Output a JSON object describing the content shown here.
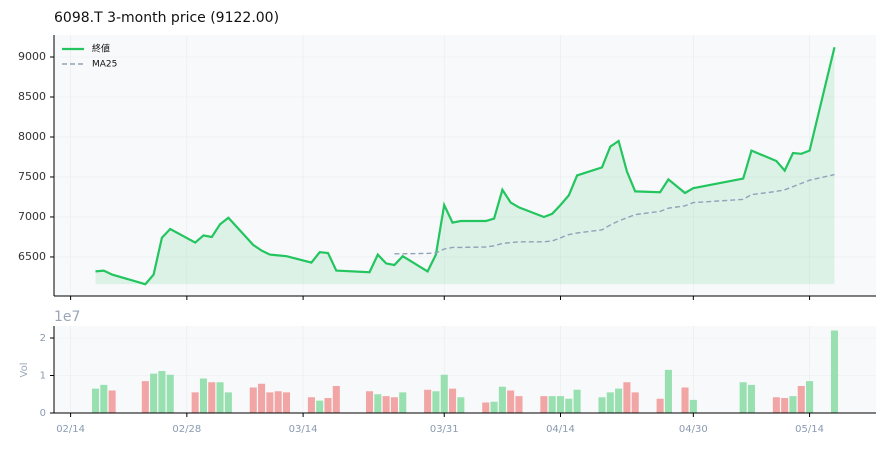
{
  "chart_data": [
    {
      "type": "line",
      "title": "6098.T  3-month price (9122.00)",
      "x": [
        "02/17",
        "02/18",
        "02/19",
        "02/23",
        "02/24",
        "02/25",
        "02/26",
        "03/01",
        "03/02",
        "03/03",
        "03/04",
        "03/05",
        "03/08",
        "03/09",
        "03/10",
        "03/11",
        "03/12",
        "03/15",
        "03/16",
        "03/17",
        "03/18",
        "03/22",
        "03/23",
        "03/24",
        "03/25",
        "03/26",
        "03/29",
        "03/30",
        "03/31",
        "04/01",
        "04/02",
        "04/05",
        "04/06",
        "04/07",
        "04/08",
        "04/09",
        "04/12",
        "04/13",
        "04/14",
        "04/15",
        "04/16",
        "04/19",
        "04/20",
        "04/21",
        "04/22",
        "04/23",
        "04/26",
        "04/27",
        "04/29",
        "04/30",
        "05/06",
        "05/07",
        "05/10",
        "05/11",
        "05/12",
        "05/13",
        "05/14",
        "05/17"
      ],
      "series": [
        {
          "name": "終値",
          "color": "#22c55e",
          "fill": true,
          "values": [
            6320,
            6330,
            6280,
            6160,
            6280,
            6740,
            6850,
            6680,
            6770,
            6750,
            6910,
            6990,
            6650,
            6580,
            6530,
            6520,
            6510,
            6430,
            6560,
            6550,
            6330,
            6310,
            6530,
            6420,
            6400,
            6510,
            6320,
            6530,
            7150,
            6930,
            6950,
            6950,
            6980,
            7340,
            7180,
            7120,
            7000,
            7040,
            7150,
            7270,
            7520,
            7620,
            7880,
            7950,
            7570,
            7320,
            7310,
            7470,
            7300,
            7360,
            7480,
            7830,
            7700,
            7580,
            7800,
            7790,
            7830,
            9122
          ]
        },
        {
          "name": "MA25",
          "color": "#8fa3b8",
          "dashed": true,
          "values": [
            null,
            null,
            null,
            null,
            null,
            null,
            null,
            null,
            null,
            null,
            null,
            null,
            null,
            null,
            null,
            null,
            null,
            null,
            null,
            null,
            null,
            null,
            null,
            null,
            6540,
            6540,
            6545,
            6550,
            6600,
            6620,
            6620,
            6625,
            6640,
            6670,
            6680,
            6690,
            6690,
            6700,
            6740,
            6780,
            6800,
            6840,
            6900,
            6950,
            6990,
            7030,
            7070,
            7110,
            7140,
            7180,
            7220,
            7280,
            7320,
            7340,
            7380,
            7420,
            7460,
            7530
          ]
        }
      ],
      "xlim": [
        "02/12",
        "05/22"
      ],
      "ylim": [
        6012,
        9275
      ],
      "yticks": [
        6500,
        7000,
        7500,
        8000,
        8500,
        9000
      ],
      "grid": true,
      "legend": "upper left"
    },
    {
      "type": "bar",
      "x": [
        "02/17",
        "02/18",
        "02/19",
        "02/23",
        "02/24",
        "02/25",
        "02/26",
        "03/01",
        "03/02",
        "03/03",
        "03/04",
        "03/05",
        "03/08",
        "03/09",
        "03/10",
        "03/11",
        "03/12",
        "03/15",
        "03/16",
        "03/17",
        "03/18",
        "03/22",
        "03/23",
        "03/24",
        "03/25",
        "03/26",
        "03/29",
        "03/30",
        "03/31",
        "04/01",
        "04/02",
        "04/05",
        "04/06",
        "04/07",
        "04/08",
        "04/09",
        "04/12",
        "04/13",
        "04/14",
        "04/15",
        "04/16",
        "04/19",
        "04/20",
        "04/21",
        "04/22",
        "04/23",
        "04/26",
        "04/27",
        "04/29",
        "04/30",
        "05/06",
        "05/07",
        "05/10",
        "05/11",
        "05/12",
        "05/13",
        "05/14",
        "05/17"
      ],
      "values": [
        0.65,
        0.75,
        0.6,
        0.85,
        1.05,
        1.12,
        1.02,
        0.55,
        0.92,
        0.82,
        0.82,
        0.55,
        0.68,
        0.78,
        0.55,
        0.58,
        0.55,
        0.42,
        0.33,
        0.4,
        0.72,
        0.58,
        0.5,
        0.45,
        0.42,
        0.55,
        0.62,
        0.58,
        1.02,
        0.65,
        0.42,
        0.28,
        0.3,
        0.7,
        0.6,
        0.45,
        0.45,
        0.45,
        0.45,
        0.38,
        0.62,
        0.42,
        0.55,
        0.65,
        0.82,
        0.55,
        0.38,
        1.15,
        0.68,
        0.35,
        0.82,
        0.75,
        0.42,
        0.4,
        0.45,
        0.72,
        0.85,
        2.2
      ],
      "colors": [
        "#98e0b0",
        "#98e0b0",
        "#f2a5a5",
        "#f2a5a5",
        "#98e0b0",
        "#98e0b0",
        "#98e0b0",
        "#f2a5a5",
        "#98e0b0",
        "#f2a5a5",
        "#98e0b0",
        "#98e0b0",
        "#f2a5a5",
        "#f2a5a5",
        "#f2a5a5",
        "#f2a5a5",
        "#f2a5a5",
        "#f2a5a5",
        "#98e0b0",
        "#f2a5a5",
        "#f2a5a5",
        "#f2a5a5",
        "#98e0b0",
        "#f2a5a5",
        "#f2a5a5",
        "#98e0b0",
        "#f2a5a5",
        "#98e0b0",
        "#98e0b0",
        "#f2a5a5",
        "#98e0b0",
        "#f2a5a5",
        "#98e0b0",
        "#98e0b0",
        "#f2a5a5",
        "#f2a5a5",
        "#f2a5a5",
        "#98e0b0",
        "#98e0b0",
        "#98e0b0",
        "#98e0b0",
        "#98e0b0",
        "#98e0b0",
        "#98e0b0",
        "#f2a5a5",
        "#f2a5a5",
        "#f2a5a5",
        "#98e0b0",
        "#f2a5a5",
        "#98e0b0",
        "#98e0b0",
        "#98e0b0",
        "#f2a5a5",
        "#f2a5a5",
        "#98e0b0",
        "#f2a5a5",
        "#98e0b0",
        "#98e0b0"
      ],
      "xlim": [
        "02/12",
        "05/22"
      ],
      "ylim": [
        0,
        2.32
      ],
      "yticks": [
        0,
        1,
        2
      ],
      "xticks": [
        "02/14",
        "02/28",
        "03/14",
        "03/31",
        "04/14",
        "04/30",
        "05/14"
      ],
      "ylabel": "Vol",
      "offset_label": "1e7",
      "grid": true
    }
  ]
}
